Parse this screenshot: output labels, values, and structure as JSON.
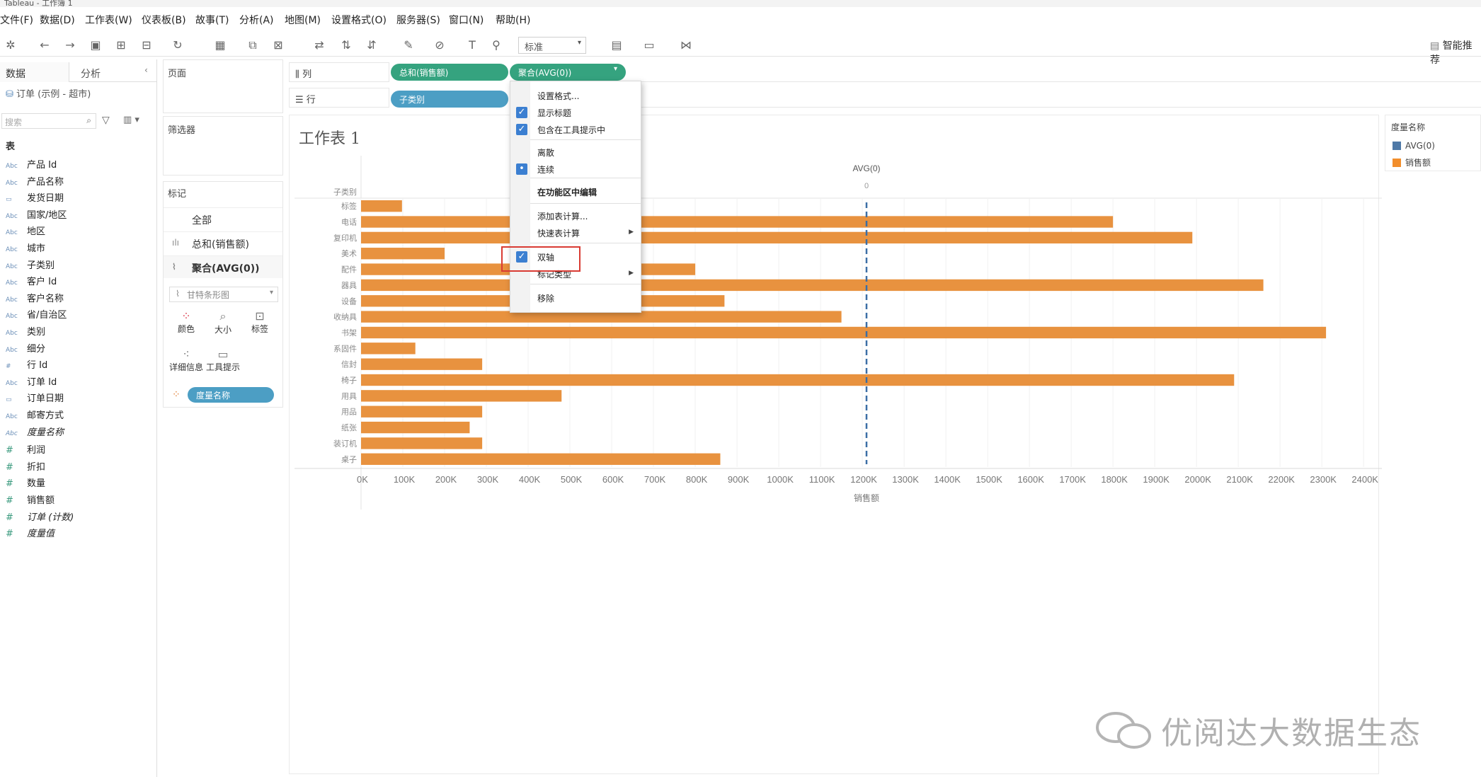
{
  "app": {
    "title": "Tableau - 工作簿 1"
  },
  "menu": [
    "文件(F)",
    "数据(D)",
    "工作表(W)",
    "仪表板(B)",
    "故事(T)",
    "分析(A)",
    "地图(M)",
    "设置格式(O)",
    "服务器(S)",
    "窗口(N)",
    "帮助(H)"
  ],
  "toolbar": {
    "fit_select": "标准",
    "smart_display": "智能推荐"
  },
  "left_pane": {
    "tab_data": "数据",
    "tab_analysis": "分析",
    "datasource": "订单 (示例 - 超市)",
    "search_placeholder": "搜索",
    "tables_heading": "表",
    "dimensions": [
      {
        "type": "Abc",
        "name": "产品 Id"
      },
      {
        "type": "Abc",
        "name": "产品名称"
      },
      {
        "type": "date",
        "name": "发货日期"
      },
      {
        "type": "Abc",
        "name": "国家/地区"
      },
      {
        "type": "Abc",
        "name": "地区"
      },
      {
        "type": "Abc",
        "name": "城市"
      },
      {
        "type": "Abc",
        "name": "子类别"
      },
      {
        "type": "Abc",
        "name": "客户 Id"
      },
      {
        "type": "Abc",
        "name": "客户名称"
      },
      {
        "type": "Abc",
        "name": "省/自治区"
      },
      {
        "type": "Abc",
        "name": "类别"
      },
      {
        "type": "Abc",
        "name": "细分"
      },
      {
        "type": "#",
        "name": "行 Id"
      },
      {
        "type": "Abc",
        "name": "订单 Id"
      },
      {
        "type": "date",
        "name": "订单日期"
      },
      {
        "type": "Abc",
        "name": "邮寄方式"
      },
      {
        "type": "Abc",
        "name": "度量名称",
        "italic": true
      }
    ],
    "measures": [
      {
        "type": "#",
        "name": "利润"
      },
      {
        "type": "#",
        "name": "折扣"
      },
      {
        "type": "#",
        "name": "数量"
      },
      {
        "type": "#",
        "name": "销售额"
      },
      {
        "type": "#",
        "name": "订单 (计数)",
        "italic": true
      },
      {
        "type": "#",
        "name": "度量值",
        "italic": true
      }
    ]
  },
  "shelves": {
    "pages": "页面",
    "filters": "筛选器",
    "columns_label": "列",
    "rows_label": "行",
    "col_pill_1": "总和(销售额)",
    "col_pill_2": "聚合(AVG(0))",
    "row_pill": "子类别"
  },
  "marks": {
    "title": "标记",
    "all": "全部",
    "sum_sales": "总和(销售额)",
    "avg0": "聚合(AVG(0))",
    "mark_type": "甘特条形图",
    "buttons": [
      "颜色",
      "大小",
      "标签",
      "详细信息",
      "工具提示"
    ],
    "measure_names_pill": "度量名称"
  },
  "sheet": {
    "title": "工作表 1"
  },
  "legend": {
    "title": "度量名称",
    "items": [
      {
        "label": "AVG(0)",
        "color": "#4e79a7"
      },
      {
        "label": "销售额",
        "color": "#f28e2b"
      }
    ]
  },
  "context_menu": {
    "items": [
      {
        "label": "设置格式...",
        "check": false
      },
      {
        "label": "显示标题",
        "check": true
      },
      {
        "label": "包含在工具提示中",
        "check": true
      },
      {
        "label": "离散",
        "check": false
      },
      {
        "label": "连续",
        "check": "dot"
      },
      {
        "label": "在功能区中编辑",
        "check": false,
        "bold": true
      },
      {
        "label": "添加表计算...",
        "check": false
      },
      {
        "label": "快速表计算",
        "check": false,
        "submenu": true
      },
      {
        "label": "双轴",
        "check": true,
        "highlighted": true
      },
      {
        "label": "标记类型",
        "check": false,
        "submenu": true
      },
      {
        "label": "移除",
        "check": false
      }
    ]
  },
  "watermark": "优阅达大数据生态",
  "chart_data": {
    "type": "bar",
    "orientation": "horizontal",
    "row_header": "子类别",
    "categories": [
      "标签",
      "电话",
      "复印机",
      "美术",
      "配件",
      "器具",
      "设备",
      "收纳具",
      "书架",
      "系固件",
      "信封",
      "椅子",
      "用具",
      "用品",
      "纸张",
      "装订机",
      "桌子"
    ],
    "series": [
      {
        "name": "销售额",
        "color": "#e8923f",
        "values": [
          98000,
          1800000,
          1990000,
          200000,
          800000,
          2160000,
          870000,
          1150000,
          2310000,
          130000,
          290000,
          2090000,
          480000,
          290000,
          260000,
          290000,
          860000
        ]
      }
    ],
    "x_axis": {
      "label": "销售额",
      "ticks": [
        "0K",
        "100K",
        "200K",
        "300K",
        "400K",
        "500K",
        "600K",
        "700K",
        "800K",
        "900K",
        "1000K",
        "1100K",
        "1200K",
        "1300K",
        "1400K",
        "1500K",
        "1600K",
        "1700K",
        "1800K",
        "1900K",
        "2000K",
        "2100K",
        "2200K",
        "2300K",
        "2400K"
      ],
      "range": [
        0,
        2420000
      ]
    },
    "top_axis": {
      "label": "AVG(0)",
      "tick": "0"
    },
    "reference_line": {
      "value": 0,
      "style": "dashed",
      "position_on_primary": 1210000
    }
  }
}
